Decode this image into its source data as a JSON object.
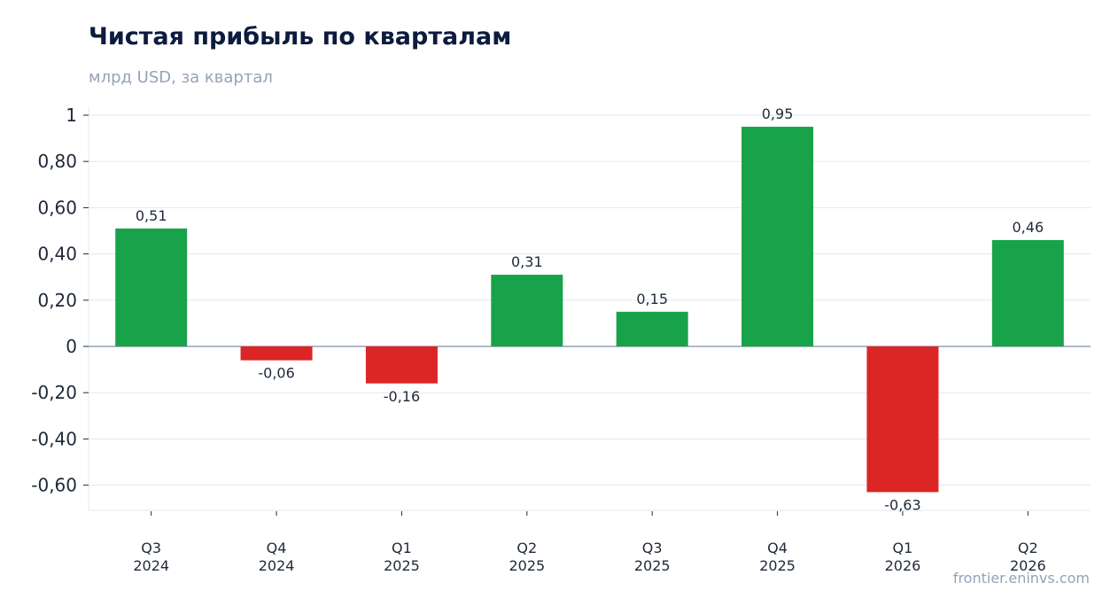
{
  "header": {
    "title": "Чистая прибыль по кварталам",
    "subtitle": "млрд USD, за квартал"
  },
  "footer": {
    "source": "frontier.eninvs.com"
  },
  "colors": {
    "positive": "#18a34a",
    "negative": "#dc2626",
    "grid": "#e2e8f0",
    "zero_line": "#94a3b8"
  },
  "chart_data": {
    "type": "bar",
    "title": "Чистая прибыль по кварталам",
    "subtitle": "млрд USD, за квартал",
    "categories": [
      [
        "Q3",
        "2024"
      ],
      [
        "Q4",
        "2024"
      ],
      [
        "Q1",
        "2025"
      ],
      [
        "Q2",
        "2025"
      ],
      [
        "Q3",
        "2025"
      ],
      [
        "Q4",
        "2025"
      ],
      [
        "Q1",
        "2026"
      ],
      [
        "Q2",
        "2026"
      ]
    ],
    "values": [
      0.51,
      -0.06,
      -0.16,
      0.31,
      0.15,
      0.95,
      -0.63,
      0.46
    ],
    "value_labels": [
      "0,51",
      "-0,06",
      "-0,16",
      "0,31",
      "0,15",
      "0,95",
      "-0,63",
      "0,46"
    ],
    "yticks": [
      1,
      0.8,
      0.6,
      0.4,
      0.2,
      0,
      -0.2,
      -0.4,
      -0.6
    ],
    "ytick_labels": [
      "1",
      "0,80",
      "0,60",
      "0,40",
      "0,20",
      "0",
      "-0,20",
      "-0,40",
      "-0,60"
    ],
    "ylim": [
      -0.71,
      1.03
    ],
    "grid": true,
    "legend": "none"
  }
}
